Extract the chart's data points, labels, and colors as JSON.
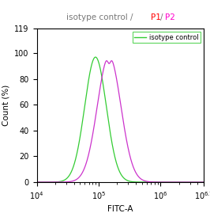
{
  "title_parts": [
    {
      "text": "isotype control / ",
      "color": "#777777"
    },
    {
      "text": "P1",
      "color": "#FF0000"
    },
    {
      "text": "/",
      "color": "#777777"
    },
    {
      "text": "P2",
      "color": "#FF00CC"
    }
  ],
  "xlabel": "FITC-A",
  "ylabel": "Count (%)",
  "ylim": [
    0,
    119
  ],
  "yticks": [
    0,
    20,
    40,
    60,
    80,
    100,
    119
  ],
  "xlim_log": [
    4.0,
    6.7
  ],
  "green_peak_log": 4.95,
  "green_peak_height": 97,
  "green_sigma_log": 0.175,
  "magenta_peak_log": 5.17,
  "magenta_peak_height": 98,
  "magenta_sigma_log": 0.19,
  "green_color": "#33CC33",
  "magenta_color": "#CC33CC",
  "legend_label": "isotype control",
  "legend_color": "#33CC33",
  "bg_color": "#ffffff",
  "font_size": 7.5,
  "axis_font_size": 7
}
